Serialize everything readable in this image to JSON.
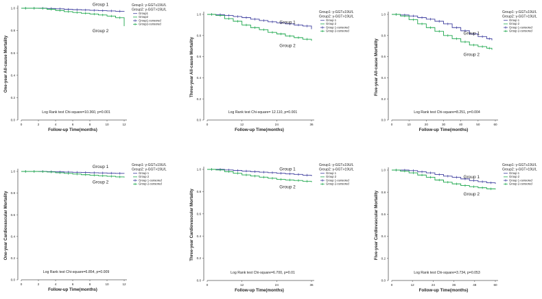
{
  "chart_data": [
    {
      "type": "line",
      "title": "One-year All-cause Mortality",
      "xlabel": "Follow-up Time(months)",
      "ylabel": "One-year All-cause Mortality",
      "xlim": [
        0,
        12
      ],
      "ylim": [
        0,
        1.0
      ],
      "xticks": [
        "0",
        "2",
        "4",
        "6",
        "8",
        "10",
        "12"
      ],
      "yticks": [
        "0.0",
        "0.2",
        "0.4",
        "0.6",
        "0.8",
        "1.0"
      ],
      "legend_header": [
        "Group1: γ-GGT≤19U/L",
        "Group2: γ-GGT>19U/L"
      ],
      "legend_items": [
        "Group1",
        "Group2",
        "Group1-censored",
        "Group2-censored"
      ],
      "stat_text": "Log Rank test Chi-square=10.360, p=0.001",
      "group_labels": [
        "Group 1",
        "Group 2"
      ],
      "series": [
        {
          "name": "Group 1",
          "color": "#3d3d9e",
          "x": [
            0,
            1,
            2,
            3,
            4,
            5,
            6,
            7,
            8,
            9,
            10,
            11,
            12
          ],
          "y": [
            1.0,
            1.0,
            1.0,
            0.998,
            0.995,
            0.99,
            0.987,
            0.984,
            0.981,
            0.978,
            0.976,
            0.973,
            0.97
          ]
        },
        {
          "name": "Group 2",
          "color": "#1aa64a",
          "x": [
            0,
            1,
            2,
            3,
            4,
            5,
            6,
            7,
            8,
            9,
            10,
            11,
            12
          ],
          "y": [
            1.0,
            1.0,
            0.999,
            0.99,
            0.98,
            0.97,
            0.962,
            0.955,
            0.948,
            0.94,
            0.93,
            0.915,
            0.84
          ]
        }
      ]
    },
    {
      "type": "line",
      "title": "Three-year All-cause Mortality",
      "xlabel": "Follow-up Time(months)",
      "ylabel": "Three-year All-cause Mortality",
      "xlim": [
        0,
        36
      ],
      "ylim": [
        0,
        1.0
      ],
      "xticks": [
        "0",
        "12",
        "24",
        "36"
      ],
      "yticks": [
        "0.0",
        "0.2",
        "0.4",
        "0.6",
        "0.8",
        "1.0"
      ],
      "legend_header": [
        "Group1: γ-GGT≤19U/L",
        "Group2: γ-GGT>19U/L"
      ],
      "legend_items": [
        "Group 1",
        "Group 2",
        "Group 1-censored",
        "Group 2-censored"
      ],
      "stat_text": "Log Rank test Chi-square= 12.110, p=0.001",
      "group_labels": [
        "Group 1",
        "Group 2"
      ],
      "series": [
        {
          "name": "Group 1",
          "color": "#3d3d9e",
          "x": [
            0,
            3,
            6,
            9,
            12,
            15,
            18,
            21,
            24,
            27,
            30,
            33,
            36
          ],
          "y": [
            1.0,
            0.998,
            0.99,
            0.98,
            0.97,
            0.955,
            0.942,
            0.93,
            0.92,
            0.91,
            0.9,
            0.89,
            0.86
          ]
        },
        {
          "name": "Group 2",
          "color": "#1aa64a",
          "x": [
            0,
            3,
            6,
            9,
            12,
            15,
            18,
            21,
            24,
            27,
            30,
            33,
            36
          ],
          "y": [
            1.0,
            0.99,
            0.96,
            0.935,
            0.9,
            0.875,
            0.855,
            0.83,
            0.815,
            0.795,
            0.78,
            0.765,
            0.75
          ]
        }
      ]
    },
    {
      "type": "line",
      "title": "Five-year All-cause Mortality",
      "xlabel": "Follow-up Time(months)",
      "ylabel": "Five-year All-cause Mortality",
      "xlim": [
        0,
        60
      ],
      "ylim": [
        0,
        1.0
      ],
      "xticks": [
        "0",
        "10",
        "20",
        "30",
        "40",
        "50",
        "60"
      ],
      "yticks": [
        "0.0",
        "0.2",
        "0.4",
        "0.6",
        "0.8",
        "1.0"
      ],
      "legend_header": [
        "Group1: γ-GGT≤19U/L",
        "Group2: γ-GGT>19U/L"
      ],
      "legend_items": [
        "Group 1",
        "Group 2",
        "Group 1-censored",
        "Group 2-censored"
      ],
      "stat_text": "Log Rank test Chi-square=8.251, p=0.004",
      "group_labels": [
        "Group 1",
        "Group 2"
      ],
      "series": [
        {
          "name": "Group 1",
          "color": "#3d3d9e",
          "x": [
            0,
            5,
            10,
            15,
            20,
            25,
            30,
            35,
            40,
            45,
            50,
            55,
            58
          ],
          "y": [
            1.0,
            0.995,
            0.985,
            0.97,
            0.955,
            0.935,
            0.91,
            0.875,
            0.845,
            0.815,
            0.79,
            0.77,
            0.755
          ]
        },
        {
          "name": "Group 2",
          "color": "#1aa64a",
          "x": [
            0,
            5,
            10,
            15,
            20,
            25,
            30,
            35,
            40,
            45,
            50,
            55,
            58
          ],
          "y": [
            1.0,
            0.985,
            0.95,
            0.91,
            0.875,
            0.84,
            0.8,
            0.77,
            0.74,
            0.71,
            0.695,
            0.68,
            0.665
          ]
        }
      ]
    },
    {
      "type": "line",
      "title": "One-year Cardiovascular Mortality",
      "xlabel": "Follow-up Time(months)",
      "ylabel": "One-year Cardiovascular Mortality",
      "xlim": [
        0,
        12
      ],
      "ylim": [
        0,
        1.0
      ],
      "xticks": [
        "0",
        "2",
        "4",
        "6",
        "8",
        "10",
        "12"
      ],
      "yticks": [
        "0.0",
        "0.2",
        "0.4",
        "0.6",
        "0.8",
        "1.0"
      ],
      "legend_header": [
        "Group1: γ-GGT≤19U/L",
        "Group2: γ-GGT>19U/L"
      ],
      "legend_items": [
        "Group 1",
        "Group 2",
        "Group 1-censored",
        "Group 2-censored"
      ],
      "stat_text": "Log Rank test Chi-square=6.854, p=0.009",
      "group_labels": [
        "Group 1",
        "Group 2"
      ],
      "series": [
        {
          "name": "Group 1",
          "color": "#3d3d9e",
          "x": [
            0,
            1,
            2,
            3,
            4,
            5,
            6,
            7,
            8,
            9,
            10,
            11,
            12
          ],
          "y": [
            1.0,
            1.0,
            1.0,
            0.998,
            0.996,
            0.994,
            0.992,
            0.99,
            0.988,
            0.986,
            0.984,
            0.982,
            0.98
          ]
        },
        {
          "name": "Group 2",
          "color": "#1aa64a",
          "x": [
            0,
            1,
            2,
            3,
            4,
            5,
            6,
            7,
            8,
            9,
            10,
            11,
            12
          ],
          "y": [
            1.0,
            1.0,
            0.999,
            0.995,
            0.988,
            0.982,
            0.976,
            0.97,
            0.965,
            0.96,
            0.955,
            0.95,
            0.945
          ]
        }
      ]
    },
    {
      "type": "line",
      "title": "Three-year Cardiovascular Mortality",
      "xlabel": "Follow-up Time(months)",
      "ylabel": "Three-year Cardiovascular Mortality",
      "xlim": [
        0,
        36
      ],
      "ylim": [
        0,
        1.0
      ],
      "xticks": [
        "0",
        "12",
        "24",
        "36"
      ],
      "yticks": [
        "0.0",
        "0.2",
        "0.4",
        "0.6",
        "0.8",
        "1.0"
      ],
      "legend_header": [
        "Group1: γ-GGT≤19U/L",
        "Group2: γ-GGT>19U/L"
      ],
      "legend_items": [
        "Group 1",
        "Group 2",
        "Group 1-censored",
        "Group 2-censored"
      ],
      "stat_text": "Log Rank test Chi-square=6.700, p=0.01",
      "group_labels": [
        "Group 1",
        "Group 2"
      ],
      "series": [
        {
          "name": "Group 1",
          "color": "#3d3d9e",
          "x": [
            0,
            3,
            6,
            9,
            12,
            15,
            18,
            21,
            24,
            27,
            30,
            33,
            36
          ],
          "y": [
            1.0,
            1.0,
            0.995,
            0.99,
            0.985,
            0.98,
            0.975,
            0.97,
            0.965,
            0.96,
            0.955,
            0.948,
            0.94
          ]
        },
        {
          "name": "Group 2",
          "color": "#1aa64a",
          "x": [
            0,
            3,
            6,
            9,
            12,
            15,
            18,
            21,
            24,
            27,
            30,
            33,
            36
          ],
          "y": [
            1.0,
            0.995,
            0.98,
            0.965,
            0.95,
            0.94,
            0.93,
            0.92,
            0.91,
            0.905,
            0.9,
            0.893,
            0.885
          ]
        }
      ]
    },
    {
      "type": "line",
      "title": "Five-year Cardiovascular Mortality",
      "xlabel": "Follow-up Time(months)",
      "ylabel": "Five-year Cardiovascular Mortality",
      "xlim": [
        0,
        60
      ],
      "ylim": [
        0,
        1.0
      ],
      "xticks": [
        "0",
        "12",
        "24",
        "36",
        "48",
        "60"
      ],
      "yticks": [
        "0.0",
        "0.2",
        "0.4",
        "0.6",
        "0.8",
        "1.0"
      ],
      "legend_header": [
        "Group1: γ-GGT≤19U/L",
        "Group2: γ-GGT>19U/L"
      ],
      "legend_items": [
        "Group 1",
        "Group 2",
        "Group 1-censored",
        "Group 2-censored"
      ],
      "stat_text": "Log Rank test Chi-square=3.734, p=0.053",
      "group_labels": [
        "Group 1",
        "Group 2"
      ],
      "series": [
        {
          "name": "Group 1",
          "color": "#3d3d9e",
          "x": [
            0,
            5,
            10,
            15,
            20,
            25,
            30,
            35,
            40,
            45,
            50,
            55,
            60
          ],
          "y": [
            1.0,
            1.0,
            0.995,
            0.985,
            0.975,
            0.96,
            0.945,
            0.935,
            0.92,
            0.905,
            0.895,
            0.885,
            0.875
          ]
        },
        {
          "name": "Group 2",
          "color": "#1aa64a",
          "x": [
            0,
            5,
            10,
            15,
            20,
            25,
            30,
            35,
            40,
            45,
            50,
            55,
            60
          ],
          "y": [
            1.0,
            0.99,
            0.975,
            0.955,
            0.935,
            0.91,
            0.89,
            0.875,
            0.86,
            0.85,
            0.84,
            0.83,
            0.825
          ]
        }
      ]
    }
  ]
}
